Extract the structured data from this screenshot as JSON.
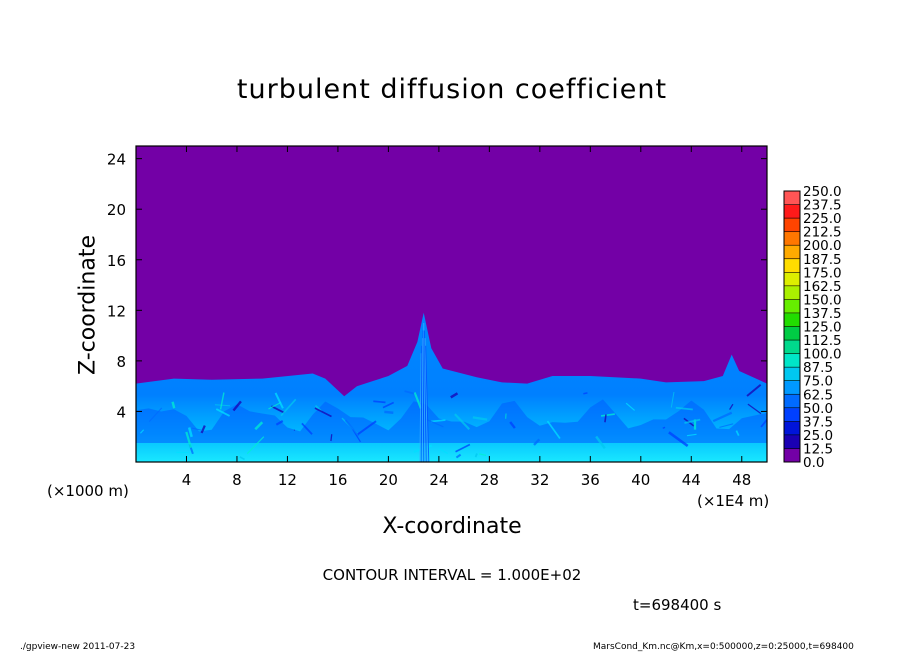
{
  "chart_data": {
    "type": "heatmap",
    "title": "turbulent diffusion coefficient",
    "xlabel": "X-coordinate",
    "ylabel": "Z-coordinate",
    "x_unit_left": "(×1000 m)",
    "x_unit_right": "(×1E4 m)",
    "xlim": [
      0,
      50
    ],
    "ylim": [
      0,
      25
    ],
    "xticks": [
      4,
      8,
      12,
      16,
      20,
      24,
      28,
      32,
      36,
      40,
      44,
      48
    ],
    "yticks": [
      4,
      8,
      12,
      16,
      20,
      24
    ],
    "colorbar": {
      "levels": [
        "0.0",
        "12.5",
        "25.0",
        "37.5",
        "50.0",
        "62.5",
        "75.0",
        "87.5",
        "100.0",
        "112.5",
        "125.0",
        "137.5",
        "150.0",
        "162.5",
        "175.0",
        "187.5",
        "200.0",
        "212.5",
        "225.0",
        "237.5",
        "250.0"
      ],
      "colors": [
        "#7300a6",
        "#1a00b3",
        "#0014d9",
        "#0040ff",
        "#006bff",
        "#0099ff",
        "#00c8f0",
        "#00e6c8",
        "#00d98c",
        "#00cc44",
        "#22dd00",
        "#66ee00",
        "#aaf000",
        "#ddee00",
        "#ffdd00",
        "#ffaa00",
        "#ff7700",
        "#ff4400",
        "#ff1a1a",
        "#ff5555",
        "#ff9999"
      ]
    },
    "background_value": "0.0"
  },
  "annotations": {
    "contour_interval": "CONTOUR INTERVAL = 1.000E+02",
    "time": "t=698400 s",
    "footer_left": "./gpview-new  2011-07-23",
    "footer_right": "MarsCond_Km.nc@Km,x=0:500000,z=0:25000,t=698400"
  }
}
